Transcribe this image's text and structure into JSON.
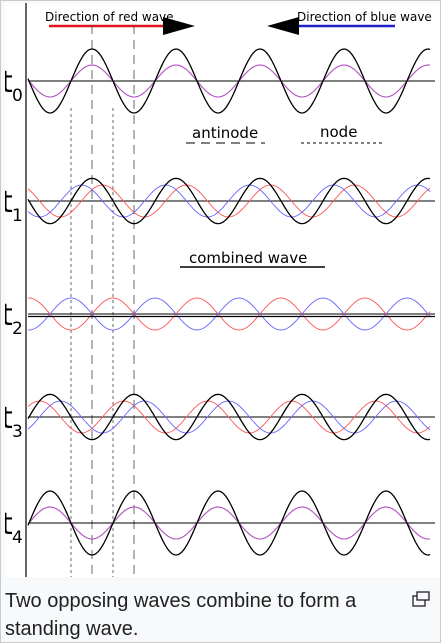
{
  "diagram": {
    "red_direction_label": "Direction of red wave",
    "blue_direction_label": "Direction of blue wave",
    "antinode_label": "antinode",
    "node_label": "node",
    "combined_wave_label": "combined wave",
    "time_labels": [
      {
        "main": "t",
        "sub": "0"
      },
      {
        "main": "t",
        "sub": "1"
      },
      {
        "main": "t",
        "sub": "2"
      },
      {
        "main": "t",
        "sub": "3"
      },
      {
        "main": "t",
        "sub": "4"
      }
    ],
    "red_wave_phases_deg": [
      0,
      45,
      90,
      135,
      180
    ],
    "colors": {
      "red_wave": "#ff5555",
      "blue_wave": "#6666ff",
      "combined_wave": "#000000",
      "overlap": "#b050c0",
      "red_arrow": "#e0141e",
      "blue_arrow": "#2020c8"
    }
  },
  "caption": {
    "text": "Two opposing waves combine to form a standing wave."
  },
  "icons": {
    "enlarge": "enlarge-icon"
  }
}
